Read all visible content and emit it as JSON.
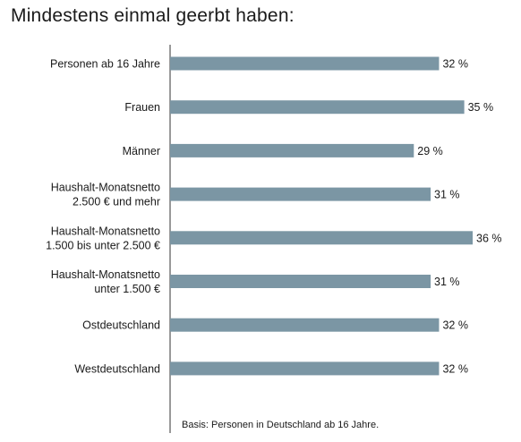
{
  "chart_data": {
    "type": "bar",
    "orientation": "horizontal",
    "title": "Mindestens einmal geerbt haben:",
    "note": "Basis: Personen in Deutschland ab 16 Jahre.",
    "categories": [
      [
        "Personen ab 16 Jahre"
      ],
      [
        "Frauen"
      ],
      [
        "Männer"
      ],
      [
        "Haushalt-Monatsnetto",
        "2.500 € und mehr"
      ],
      [
        "Haushalt-Monatsnetto",
        "1.500 bis unter 2.500 €"
      ],
      [
        "Haushalt-Monatsnetto",
        "unter 1.500 €"
      ],
      [
        "Ostdeutschland"
      ],
      [
        "Westdeutschland"
      ]
    ],
    "values": [
      32,
      35,
      29,
      31,
      36,
      31,
      32,
      32
    ],
    "value_labels": [
      "32 %",
      "35 %",
      "29 %",
      "31 %",
      "36 %",
      "31 %",
      "32 %",
      "32 %"
    ],
    "unit": "%",
    "xlim": [
      0,
      36
    ],
    "grid": false,
    "legend": "none",
    "colors": {
      "bar": "#7b96a4",
      "axis": "#333333",
      "text": "#1a1a1a"
    }
  }
}
